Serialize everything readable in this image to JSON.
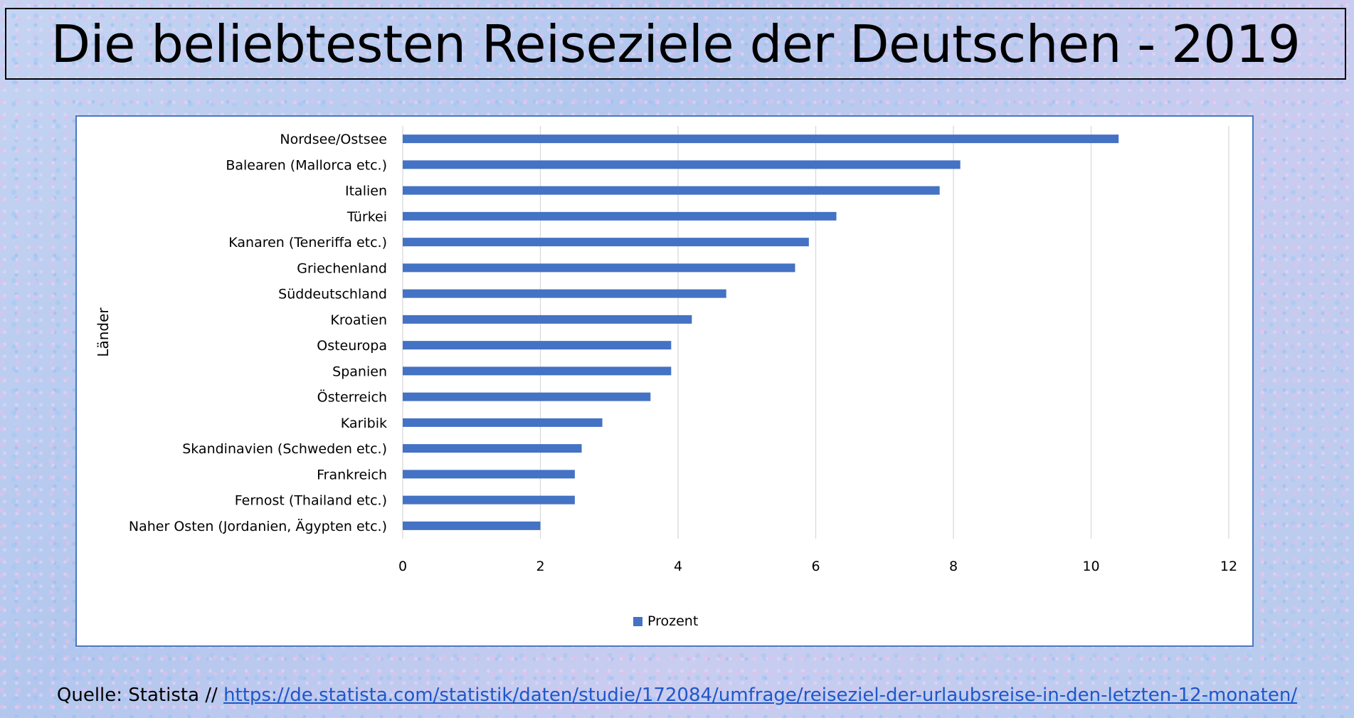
{
  "title": "Die beliebtesten Reiseziele der Deutschen - 2019",
  "source": {
    "prefix": "Quelle: Statista // ",
    "link_text": "https://de.statista.com/statistik/daten/studie/172084/umfrage/reiseziel-der-urlaubsreise-in-den-letzten-12-monaten/"
  },
  "colors": {
    "bar": "#4472c4",
    "grid": "#d9d9d9",
    "chart_border": "#4a78c2",
    "link": "#1f57c8"
  },
  "chart_data": {
    "type": "bar",
    "orientation": "horizontal",
    "title": "",
    "xlabel": "",
    "ylabel": "Länder",
    "xlim": [
      0,
      12
    ],
    "xticks": [
      0,
      2,
      4,
      6,
      8,
      10,
      12
    ],
    "grid": "vertical",
    "legend_position": "bottom",
    "categories": [
      "Nordsee/Ostsee",
      "Balearen (Mallorca etc.)",
      "Italien",
      "Türkei",
      "Kanaren (Teneriffa etc.)",
      "Griechenland",
      "Süddeutschland",
      "Kroatien",
      "Osteuropa",
      "Spanien",
      "Österreich",
      "Karibik",
      "Skandinavien (Schweden etc.)",
      "Frankreich",
      "Fernost (Thailand etc.)",
      "Naher Osten (Jordanien, Ägypten etc.)"
    ],
    "series": [
      {
        "name": "Prozent",
        "values": [
          10.4,
          8.1,
          7.8,
          6.3,
          5.9,
          5.7,
          4.7,
          4.2,
          3.9,
          3.9,
          3.6,
          2.9,
          2.6,
          2.5,
          2.5,
          2.0
        ]
      }
    ]
  }
}
